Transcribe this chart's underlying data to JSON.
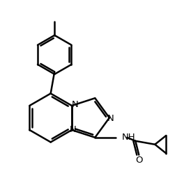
{
  "background_color": "#ffffff",
  "line_color": "#000000",
  "figsize": [
    2.74,
    2.82
  ],
  "dpi": 100,
  "lw": 1.8,
  "font_size": 9.5,
  "atoms": {
    "N1_label": "N",
    "N2_label": "N",
    "N3_label": "N",
    "NH_label": "NH",
    "O_label": "O"
  }
}
